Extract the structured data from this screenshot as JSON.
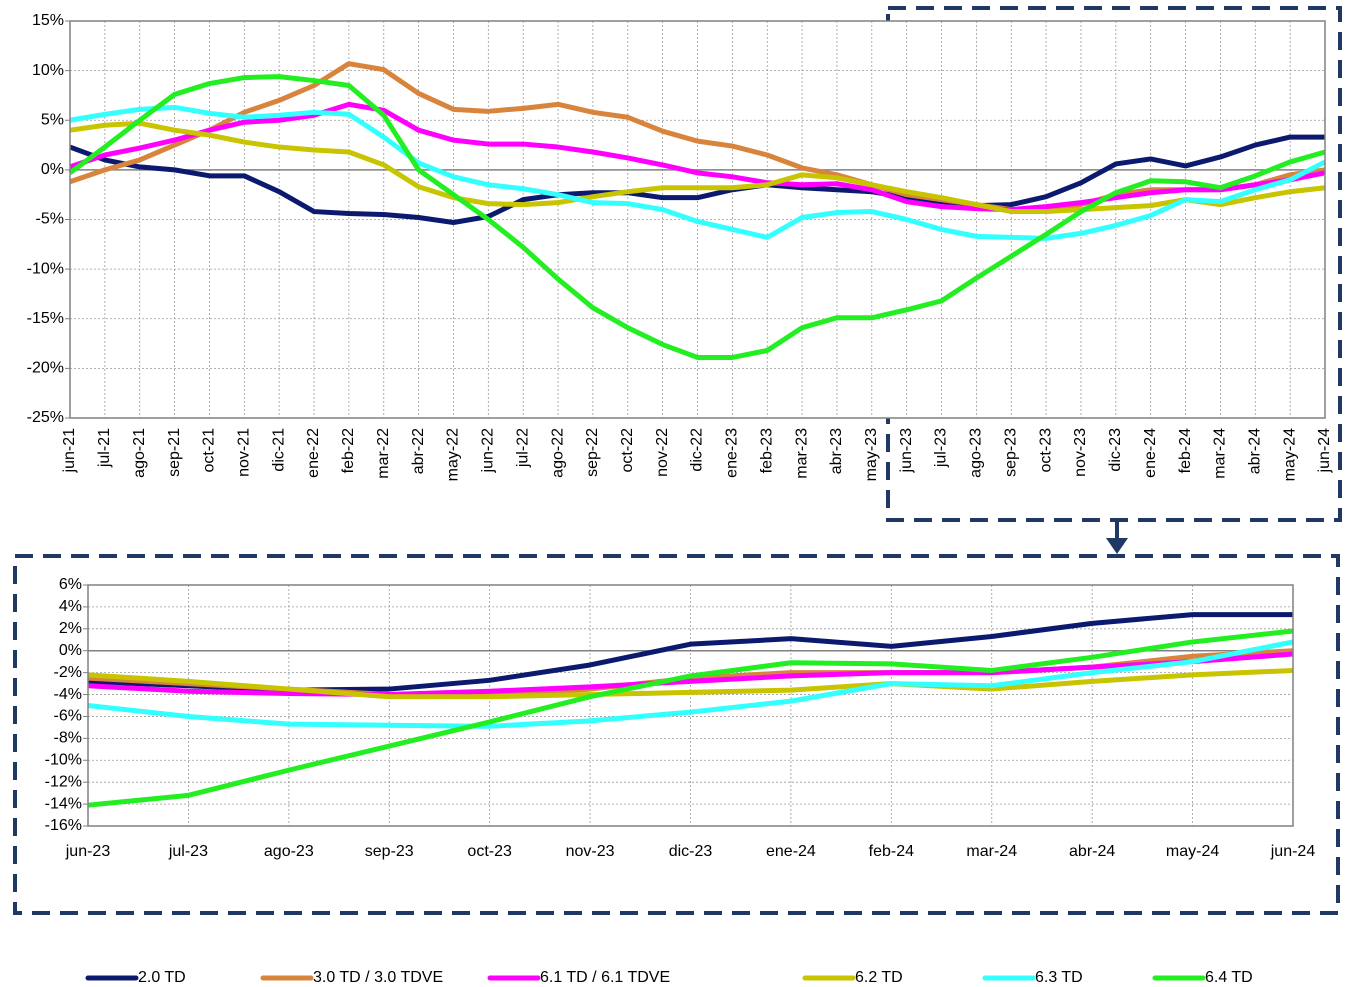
{
  "chart_data": [
    {
      "type": "line",
      "categories": [
        "jun-21",
        "jul-21",
        "ago-21",
        "sep-21",
        "oct-21",
        "nov-21",
        "dic-21",
        "ene-22",
        "feb-22",
        "mar-22",
        "abr-22",
        "may-22",
        "jun-22",
        "jul-22",
        "ago-22",
        "sep-22",
        "oct-22",
        "nov-22",
        "dic-22",
        "ene-23",
        "feb-23",
        "mar-23",
        "abr-23",
        "may-23",
        "jun-23",
        "jul-23",
        "ago-23",
        "sep-23",
        "oct-23",
        "nov-23",
        "dic-23",
        "ene-24",
        "feb-24",
        "mar-24",
        "abr-24",
        "may-24",
        "jun-24"
      ],
      "ylim": [
        -25,
        15
      ],
      "yticks": [
        {
          "value": -25,
          "label": "-25%"
        },
        {
          "value": -20,
          "label": "-20%"
        },
        {
          "value": -15,
          "label": "-15%"
        },
        {
          "value": -10,
          "label": "-10%"
        },
        {
          "value": -5,
          "label": "-5%"
        },
        {
          "value": 0,
          "label": "0%"
        },
        {
          "value": 5,
          "label": "5%"
        },
        {
          "value": 10,
          "label": "10%"
        },
        {
          "value": 15,
          "label": "15%"
        }
      ],
      "grid": true,
      "legend": "bottom",
      "series": [
        {
          "name": "2.0 TD",
          "color": "#0b1a6e",
          "values": [
            2.3,
            1,
            0.3,
            0,
            -0.6,
            -0.6,
            -2.2,
            -4.2,
            -4.4,
            -4.5,
            -4.8,
            -5.3,
            -4.7,
            -3,
            -2.5,
            -2.3,
            -2.3,
            -2.8,
            -2.8,
            -2,
            -1.5,
            -1.8,
            -2,
            -2.2,
            -2.8,
            -3.2,
            -3.6,
            -3.5,
            -2.7,
            -1.3,
            0.6,
            1.1,
            0.4,
            1.3,
            2.5,
            3.3,
            3.3
          ]
        },
        {
          "name": "3.0 TD / 3.0 TDVE",
          "color": "#d9843c",
          "values": [
            -1.2,
            0,
            1,
            2.5,
            4,
            5.8,
            7,
            8.5,
            10.7,
            10.1,
            7.7,
            6.1,
            5.9,
            6.2,
            6.6,
            5.8,
            5.3,
            3.9,
            2.9,
            2.4,
            1.5,
            0.2,
            -0.5,
            -1.5,
            -2.5,
            -3,
            -3.5,
            -4,
            -4,
            -3.5,
            -2.5,
            -2,
            -2,
            -2,
            -1.5,
            -0.5,
            0
          ]
        },
        {
          "name": "6.1 TD / 6.1 TDVE",
          "color": "#ff00ff",
          "values": [
            0.3,
            1.5,
            2.2,
            3,
            4,
            4.8,
            5,
            5.5,
            6.6,
            6,
            4,
            3,
            2.6,
            2.6,
            2.3,
            1.8,
            1.2,
            0.5,
            -0.3,
            -0.7,
            -1.3,
            -1.5,
            -1.4,
            -2,
            -3.2,
            -3.7,
            -3.9,
            -4,
            -3.7,
            -3.3,
            -2.8,
            -2.3,
            -2,
            -2,
            -1.5,
            -1,
            -0.3
          ]
        },
        {
          "name": "6.2 TD",
          "color": "#c8c400",
          "values": [
            4,
            4.5,
            4.7,
            4,
            3.5,
            2.8,
            2.3,
            2,
            1.8,
            0.5,
            -1.7,
            -2.8,
            -3.4,
            -3.5,
            -3.3,
            -2.7,
            -2.2,
            -1.8,
            -1.8,
            -1.8,
            -1.5,
            -0.5,
            -0.8,
            -1.5,
            -2.2,
            -2.8,
            -3.5,
            -4.2,
            -4.2,
            -4,
            -3.8,
            -3.6,
            -3,
            -3.5,
            -2.8,
            -2.2,
            -1.8
          ]
        },
        {
          "name": "6.3 TD",
          "color": "#33ffff",
          "values": [
            5,
            5.6,
            6.1,
            6.3,
            5.7,
            5.3,
            5.5,
            5.8,
            5.6,
            3.3,
            0.7,
            -0.7,
            -1.5,
            -1.9,
            -2.5,
            -3.3,
            -3.4,
            -4,
            -5.2,
            -6,
            -6.8,
            -4.8,
            -4.3,
            -4.2,
            -5,
            -6,
            -6.7,
            -6.8,
            -6.9,
            -6.4,
            -5.6,
            -4.6,
            -3,
            -3.2,
            -2,
            -1,
            0.8
          ]
        },
        {
          "name": "6.4 TD",
          "color": "#22ee22",
          "values": [
            -0.3,
            2.3,
            5,
            7.6,
            8.7,
            9.3,
            9.4,
            9,
            8.5,
            5.5,
            0,
            -2.5,
            -5,
            -7.8,
            -11,
            -13.9,
            -15.9,
            -17.6,
            -18.9,
            -18.9,
            -18.2,
            -15.9,
            -14.9,
            -14.9,
            -14.1,
            -13.2,
            -10.9,
            -8.7,
            -6.5,
            -4.2,
            -2.3,
            -1.1,
            -1.2,
            -1.8,
            -0.6,
            0.8,
            1.8
          ]
        }
      ]
    },
    {
      "type": "line",
      "categories": [
        "jun-23",
        "jul-23",
        "ago-23",
        "sep-23",
        "oct-23",
        "nov-23",
        "dic-23",
        "ene-24",
        "feb-24",
        "mar-24",
        "abr-24",
        "may-24",
        "jun-24"
      ],
      "ylim": [
        -16,
        6
      ],
      "yticks": [
        {
          "value": -16,
          "label": "-16%"
        },
        {
          "value": -14,
          "label": "-14%"
        },
        {
          "value": -12,
          "label": "-12%"
        },
        {
          "value": -10,
          "label": "-10%"
        },
        {
          "value": -8,
          "label": "-8%"
        },
        {
          "value": -6,
          "label": "-6%"
        },
        {
          "value": -4,
          "label": "-4%"
        },
        {
          "value": -2,
          "label": "-2%"
        },
        {
          "value": 0,
          "label": "0%"
        },
        {
          "value": 2,
          "label": "2%"
        },
        {
          "value": 4,
          "label": "4%"
        },
        {
          "value": 6,
          "label": "6%"
        }
      ],
      "grid": true,
      "series": [
        {
          "color": "#0b1a6e",
          "values": [
            -2.8,
            -3.2,
            -3.6,
            -3.5,
            -2.7,
            -1.3,
            0.6,
            1.1,
            0.4,
            1.3,
            2.5,
            3.3,
            3.3
          ]
        },
        {
          "color": "#d9843c",
          "values": [
            -2.5,
            -3,
            -3.5,
            -4,
            -4,
            -3.5,
            -2.5,
            -2,
            -2,
            -2,
            -1.5,
            -0.5,
            0
          ]
        },
        {
          "color": "#ff00ff",
          "values": [
            -3.2,
            -3.7,
            -3.9,
            -4,
            -3.7,
            -3.3,
            -2.8,
            -2.3,
            -2,
            -2,
            -1.5,
            -1,
            -0.3
          ]
        },
        {
          "color": "#c8c400",
          "values": [
            -2.2,
            -2.8,
            -3.5,
            -4.2,
            -4.2,
            -4,
            -3.8,
            -3.6,
            -3,
            -3.5,
            -2.8,
            -2.2,
            -1.8
          ]
        },
        {
          "color": "#33ffff",
          "values": [
            -5,
            -6,
            -6.7,
            -6.8,
            -6.9,
            -6.4,
            -5.6,
            -4.6,
            -3,
            -3.2,
            -2,
            -1,
            0.8
          ]
        },
        {
          "color": "#22ee22",
          "values": [
            -14.1,
            -13.2,
            -10.9,
            -8.7,
            -6.5,
            -4.2,
            -2.3,
            -1.1,
            -1.2,
            -1.8,
            -0.6,
            0.8,
            1.8
          ]
        }
      ]
    }
  ]
}
